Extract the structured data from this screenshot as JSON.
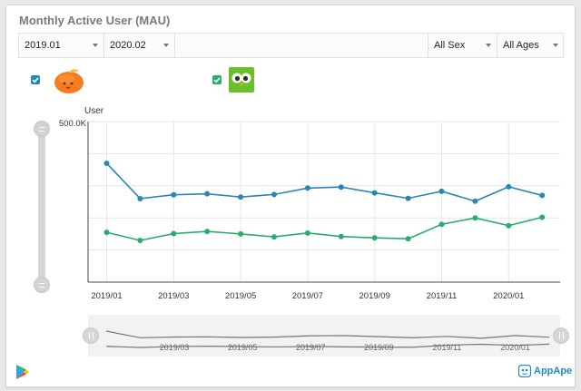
{
  "page_title": "Monthly Active User (MAU)",
  "filters": {
    "start": "2019.01",
    "end": "2020.02",
    "sex": "All Sex",
    "ages": "All Ages"
  },
  "apps": [
    {
      "checked": true,
      "icon": "orange-fruit-app-icon"
    },
    {
      "checked": true,
      "icon": "green-owl-app-icon"
    }
  ],
  "brand": "AppApe",
  "platform_icon": "google-play-icon",
  "colors": {
    "series_blue": "#2b86b5",
    "series_green": "#27ae6b",
    "accent": "#1e88c9"
  },
  "chart_data": {
    "type": "line",
    "ylabel": "User",
    "ymax_label": "500.0K",
    "ylim": [
      0,
      500000
    ],
    "x": [
      "2019/01",
      "2019/02",
      "2019/03",
      "2019/04",
      "2019/05",
      "2019/06",
      "2019/07",
      "2019/08",
      "2019/09",
      "2019/10",
      "2019/11",
      "2019/12",
      "2020/01",
      "2020/02"
    ],
    "x_ticks": [
      "2019/01",
      "2019/03",
      "2019/05",
      "2019/07",
      "2019/09",
      "2019/11",
      "2020/01"
    ],
    "series": [
      {
        "color": "#2b86b5",
        "values": [
          370000,
          260000,
          272000,
          275000,
          265000,
          273000,
          293000,
          296000,
          278000,
          261000,
          283000,
          252000,
          297000,
          270000
        ]
      },
      {
        "color": "#27ae6b",
        "values": [
          155000,
          130000,
          151000,
          158000,
          150000,
          141000,
          153000,
          142000,
          138000,
          135000,
          180000,
          200000,
          176000,
          202000
        ]
      }
    ],
    "overview_ticks": [
      "2019/03",
      "2019/05",
      "2019/07",
      "2019/09",
      "2019/11",
      "2020/01"
    ],
    "grid": true
  }
}
